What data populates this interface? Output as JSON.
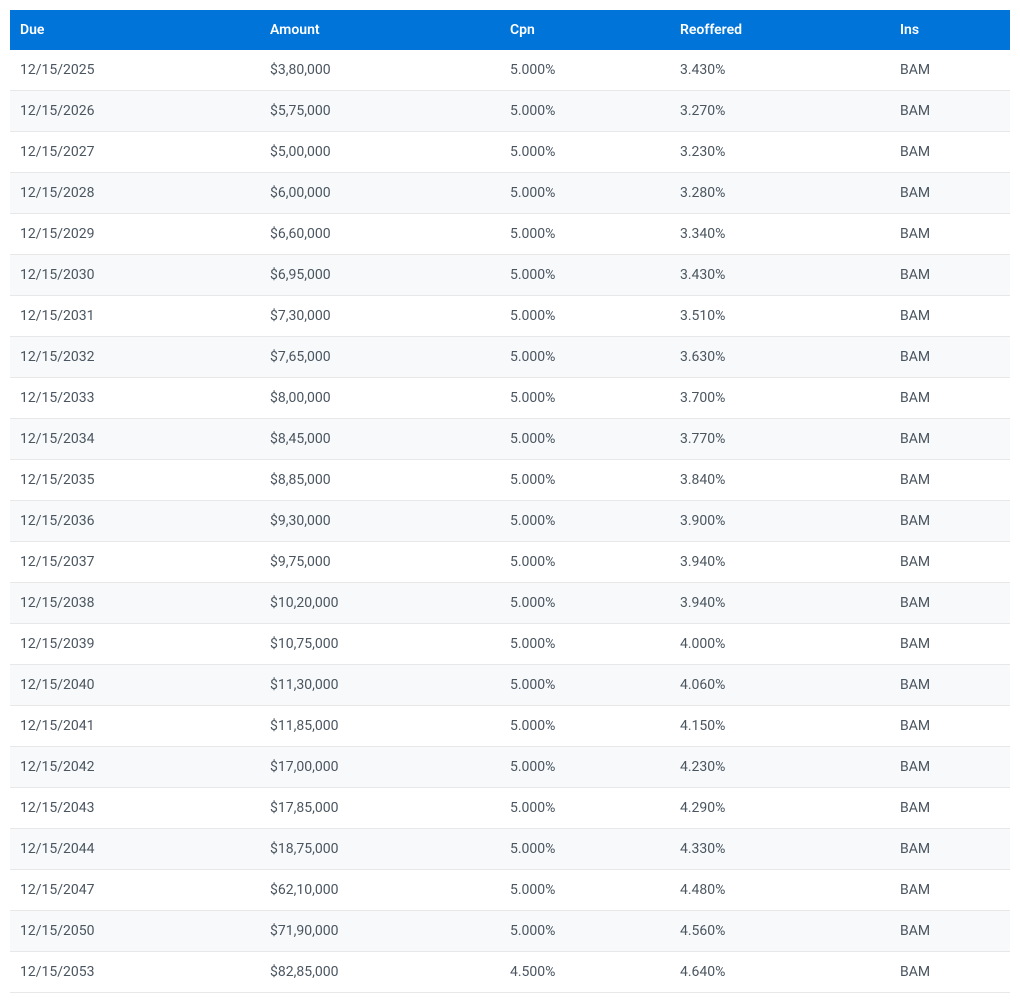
{
  "table": {
    "columns": [
      {
        "key": "due",
        "label": "Due",
        "class": "col-due"
      },
      {
        "key": "amount",
        "label": "Amount",
        "class": "col-amount"
      },
      {
        "key": "cpn",
        "label": "Cpn",
        "class": "col-cpn"
      },
      {
        "key": "reoffered",
        "label": "Reoffered",
        "class": "col-reoffered"
      },
      {
        "key": "ins",
        "label": "Ins",
        "class": "col-ins"
      }
    ],
    "rows": [
      {
        "due": "12/15/2025",
        "amount": "$3,80,000",
        "cpn": "5.000%",
        "reoffered": "3.430%",
        "ins": "BAM"
      },
      {
        "due": "12/15/2026",
        "amount": "$5,75,000",
        "cpn": "5.000%",
        "reoffered": "3.270%",
        "ins": "BAM"
      },
      {
        "due": "12/15/2027",
        "amount": "$5,00,000",
        "cpn": "5.000%",
        "reoffered": "3.230%",
        "ins": "BAM"
      },
      {
        "due": "12/15/2028",
        "amount": "$6,00,000",
        "cpn": "5.000%",
        "reoffered": "3.280%",
        "ins": "BAM"
      },
      {
        "due": "12/15/2029",
        "amount": "$6,60,000",
        "cpn": "5.000%",
        "reoffered": "3.340%",
        "ins": "BAM"
      },
      {
        "due": "12/15/2030",
        "amount": "$6,95,000",
        "cpn": "5.000%",
        "reoffered": "3.430%",
        "ins": "BAM"
      },
      {
        "due": "12/15/2031",
        "amount": "$7,30,000",
        "cpn": "5.000%",
        "reoffered": "3.510%",
        "ins": "BAM"
      },
      {
        "due": "12/15/2032",
        "amount": "$7,65,000",
        "cpn": "5.000%",
        "reoffered": "3.630%",
        "ins": "BAM"
      },
      {
        "due": "12/15/2033",
        "amount": "$8,00,000",
        "cpn": "5.000%",
        "reoffered": "3.700%",
        "ins": "BAM"
      },
      {
        "due": "12/15/2034",
        "amount": "$8,45,000",
        "cpn": "5.000%",
        "reoffered": "3.770%",
        "ins": "BAM"
      },
      {
        "due": "12/15/2035",
        "amount": "$8,85,000",
        "cpn": "5.000%",
        "reoffered": "3.840%",
        "ins": "BAM"
      },
      {
        "due": "12/15/2036",
        "amount": "$9,30,000",
        "cpn": "5.000%",
        "reoffered": "3.900%",
        "ins": "BAM"
      },
      {
        "due": "12/15/2037",
        "amount": "$9,75,000",
        "cpn": "5.000%",
        "reoffered": "3.940%",
        "ins": "BAM"
      },
      {
        "due": "12/15/2038",
        "amount": "$10,20,000",
        "cpn": "5.000%",
        "reoffered": "3.940%",
        "ins": "BAM"
      },
      {
        "due": "12/15/2039",
        "amount": "$10,75,000",
        "cpn": "5.000%",
        "reoffered": "4.000%",
        "ins": "BAM"
      },
      {
        "due": "12/15/2040",
        "amount": "$11,30,000",
        "cpn": "5.000%",
        "reoffered": "4.060%",
        "ins": "BAM"
      },
      {
        "due": "12/15/2041",
        "amount": "$11,85,000",
        "cpn": "5.000%",
        "reoffered": "4.150%",
        "ins": "BAM"
      },
      {
        "due": "12/15/2042",
        "amount": "$17,00,000",
        "cpn": "5.000%",
        "reoffered": "4.230%",
        "ins": "BAM"
      },
      {
        "due": "12/15/2043",
        "amount": "$17,85,000",
        "cpn": "5.000%",
        "reoffered": "4.290%",
        "ins": "BAM"
      },
      {
        "due": "12/15/2044",
        "amount": "$18,75,000",
        "cpn": "5.000%",
        "reoffered": "4.330%",
        "ins": "BAM"
      },
      {
        "due": "12/15/2047",
        "amount": "$62,10,000",
        "cpn": "5.000%",
        "reoffered": "4.480%",
        "ins": "BAM"
      },
      {
        "due": "12/15/2050",
        "amount": "$71,90,000",
        "cpn": "5.000%",
        "reoffered": "4.560%",
        "ins": "BAM"
      },
      {
        "due": "12/15/2053",
        "amount": "$82,85,000",
        "cpn": "4.500%",
        "reoffered": "4.640%",
        "ins": "BAM"
      }
    ],
    "header_bg_color": "#0074d9",
    "header_text_color": "#ffffff",
    "row_even_bg": "#f7f9fa",
    "row_odd_bg": "#ffffff",
    "border_color": "#e8e8e8",
    "cell_text_color": "#4a5560",
    "font_size": 14
  }
}
